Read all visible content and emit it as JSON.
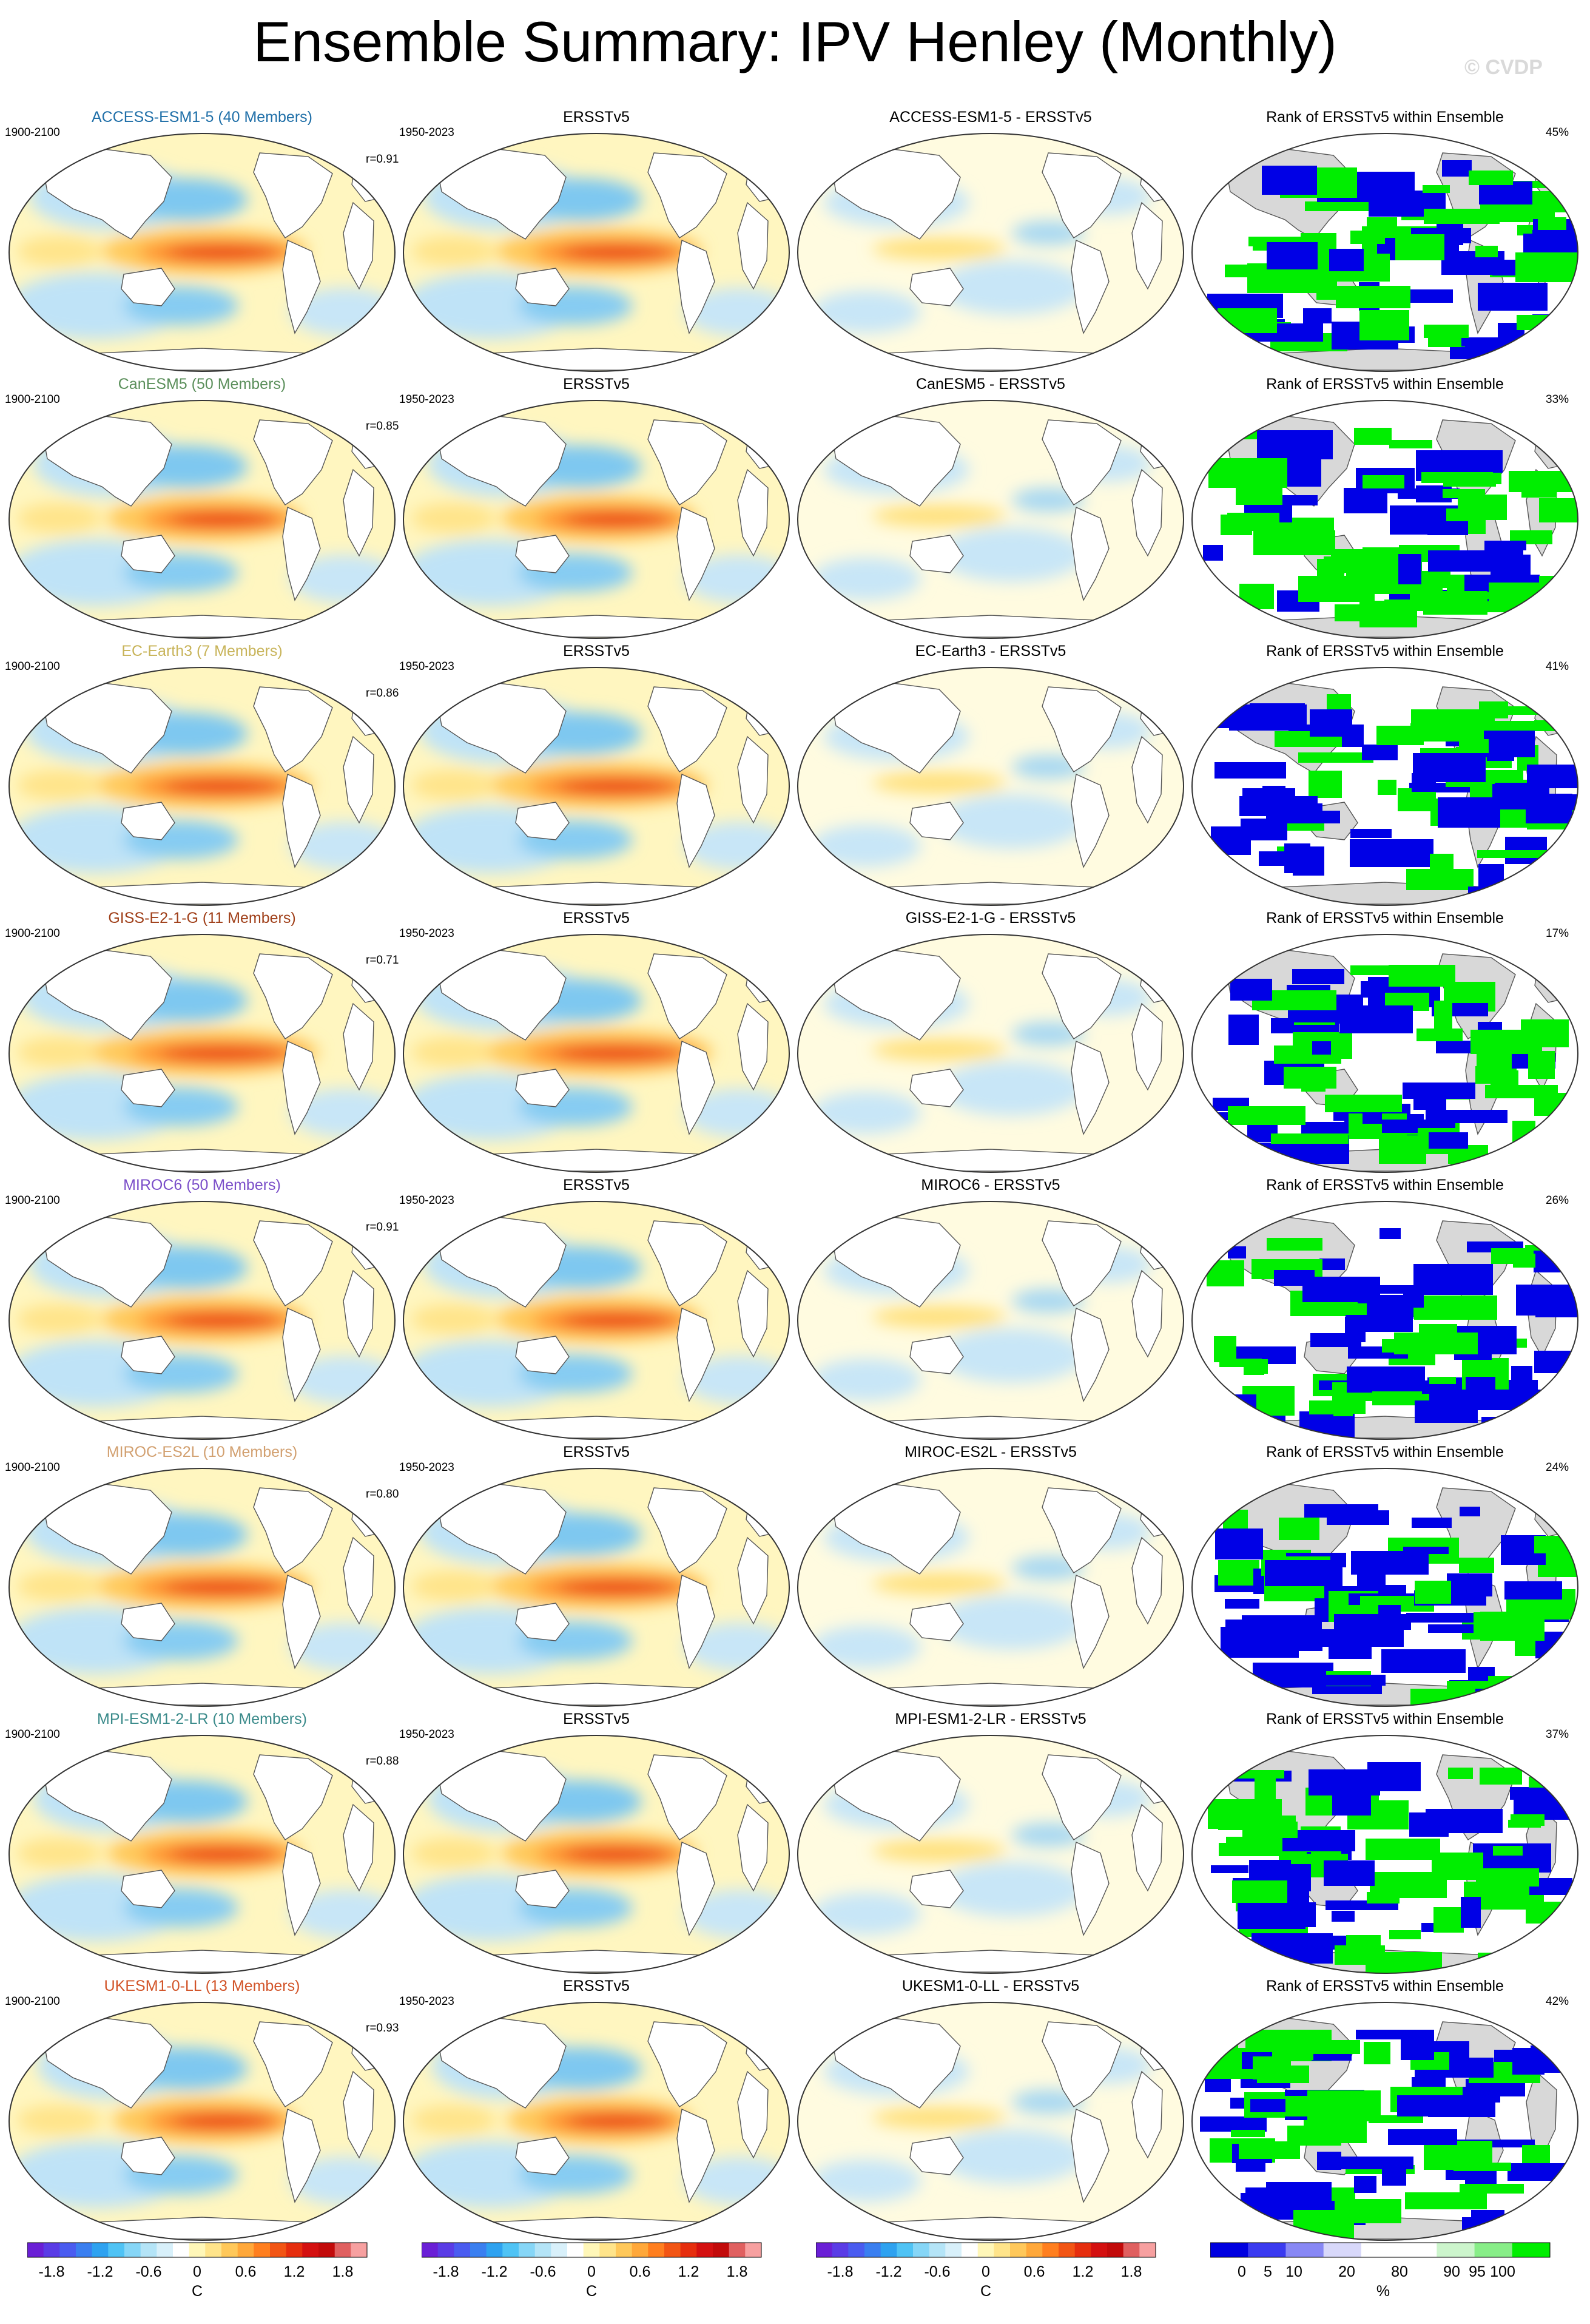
{
  "header": {
    "title": "Ensemble Summary: IPV Henley (Monthly)",
    "watermark": "© CVDP"
  },
  "rows": [
    {
      "model": "ACCESS-ESM1-5 (40 Members)",
      "model_color": "#1f6fa8",
      "diff_title": "ACCESS-ESM1-5 - ERSSTv5",
      "corr": "r=0.91",
      "rank_pct": "45%",
      "strength": 1.0
    },
    {
      "model": "CanESM5 (50 Members)",
      "model_color": "#5b8f5b",
      "diff_title": "CanESM5 - ERSSTv5",
      "corr": "r=0.85",
      "rank_pct": "33%",
      "strength": 0.95
    },
    {
      "model": "EC-Earth3 (7 Members)",
      "model_color": "#c8b45a",
      "diff_title": "EC-Earth3 - ERSSTv5",
      "corr": "r=0.86",
      "rank_pct": "41%",
      "strength": 1.05
    },
    {
      "model": "GISS-E2-1-G (11 Members)",
      "model_color": "#a0401a",
      "diff_title": "GISS-E2-1-G - ERSSTv5",
      "corr": "r=0.71",
      "rank_pct": "17%",
      "strength": 1.1
    },
    {
      "model": "MIROC6 (50 Members)",
      "model_color": "#7b4fc9",
      "diff_title": "MIROC6 - ERSSTv5",
      "corr": "r=0.91",
      "rank_pct": "26%",
      "strength": 1.0
    },
    {
      "model": "MIROC-ES2L (10 Members)",
      "model_color": "#d2a070",
      "diff_title": "MIROC-ES2L - ERSSTv5",
      "corr": "r=0.80",
      "rank_pct": "24%",
      "strength": 1.05
    },
    {
      "model": "MPI-ESM1-2-LR (10 Members)",
      "model_color": "#3a8a8a",
      "diff_title": "MPI-ESM1-2-LR - ERSSTv5",
      "corr": "r=0.88",
      "rank_pct": "37%",
      "strength": 0.95
    },
    {
      "model": "UKESM1-0-LL (13 Members)",
      "model_color": "#d2552a",
      "diff_title": "UKESM1-0-LL - ERSSTv5",
      "corr": "r=0.93",
      "rank_pct": "42%",
      "strength": 0.9
    }
  ],
  "common": {
    "model_period": "1900-2100",
    "obs_period": "1950-2023",
    "obs_title": "ERSSTv5",
    "rank_title": "Rank of ERSSTv5 within Ensemble"
  },
  "colorbars": {
    "sst": {
      "labels": [
        "-1.8",
        "-1.2",
        "-0.6",
        "0",
        "0.6",
        "1.2",
        "1.8"
      ],
      "unit": "C",
      "colors": [
        "#6a1fd6",
        "#5a3ce6",
        "#4a5cf0",
        "#3a7ff0",
        "#2ea2f0",
        "#4fc3f5",
        "#86d6f7",
        "#b4e4f7",
        "#d8f0fa",
        "#ffffff",
        "#fff7b8",
        "#ffe48a",
        "#ffc85a",
        "#ffa83a",
        "#ff7f1f",
        "#f25514",
        "#e62e0e",
        "#d41010",
        "#c20a0a",
        "#e06060",
        "#f7a0a0"
      ]
    },
    "rank": {
      "labels": [
        "0",
        "5",
        "10",
        "20",
        "80",
        "90",
        "95",
        "100"
      ],
      "unit": "%",
      "colors": [
        "#0000e0",
        "#3a3af0",
        "#8888f5",
        "#d8d8fa",
        "#ffffff",
        "#ffffff",
        "#ccf5cc",
        "#88ee88",
        "#00ee00"
      ]
    }
  }
}
